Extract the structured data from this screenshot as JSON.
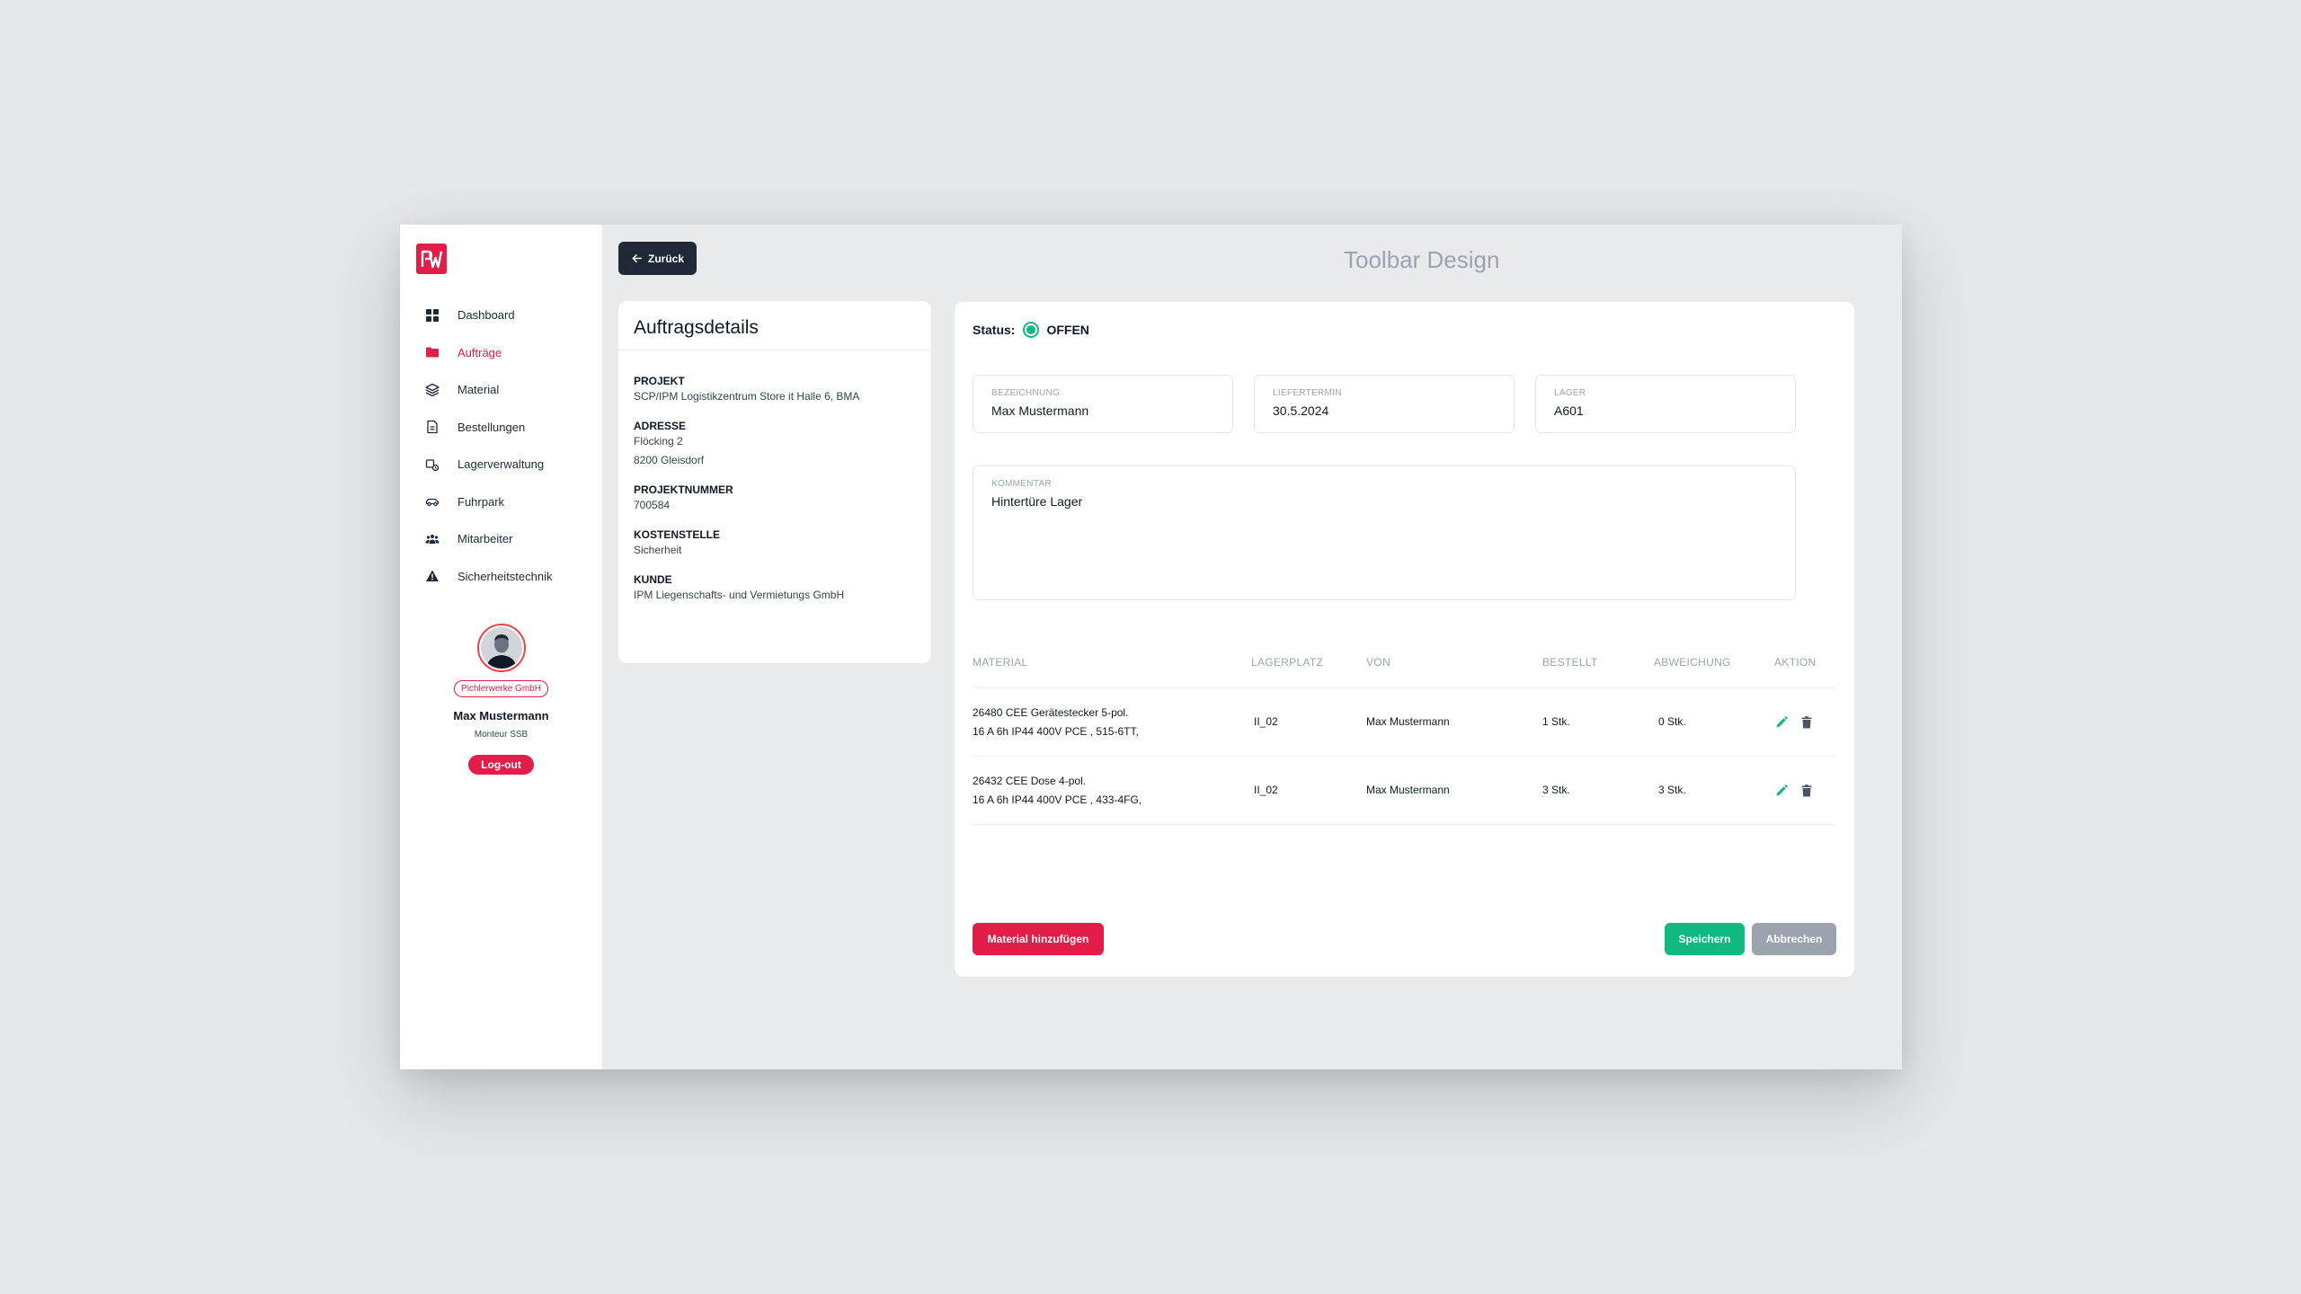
{
  "app": {
    "toolbar_title": "Toolbar Design",
    "back_label": "Zurück"
  },
  "colors": {
    "accent": "#e11d48",
    "success": "#10b981",
    "dark": "#1f2937",
    "muted": "#9ca3af"
  },
  "sidebar": {
    "items": [
      {
        "label": "Dashboard",
        "icon": "grid-icon",
        "active": false
      },
      {
        "label": "Aufträge",
        "icon": "folder-icon",
        "active": true
      },
      {
        "label": "Material",
        "icon": "layers-icon",
        "active": false
      },
      {
        "label": "Bestellungen",
        "icon": "document-icon",
        "active": false
      },
      {
        "label": "Lagerverwaltung",
        "icon": "truck-box-icon",
        "active": false
      },
      {
        "label": "Fuhrpark",
        "icon": "car-icon",
        "active": false
      },
      {
        "label": "Mitarbeiter",
        "icon": "users-icon",
        "active": false
      },
      {
        "label": "Sicherheitstechnik",
        "icon": "warning-icon",
        "active": false
      }
    ],
    "profile": {
      "company": "Pichlerwerke GmbH",
      "name": "Max Mustermann",
      "role": "Monteur SSB",
      "logout_label": "Log-out"
    }
  },
  "details": {
    "title": "Auftragsdetails",
    "projekt_label": "PROJEKT",
    "projekt_value": "SCP/IPM Logistikzentrum Store it Halle 6, BMA",
    "adresse_label": "ADRESSE",
    "adresse_line1": "Flöcking 2",
    "adresse_line2": "8200 Gleisdorf",
    "projektnummer_label": "PROJEKTNUMMER",
    "projektnummer_value": "700584",
    "kostenstelle_label": "KOSTENSTELLE",
    "kostenstelle_value": "Sicherheit",
    "kunde_label": "KUNDE",
    "kunde_value": "IPM Liegenschafts- und Vermietungs GmbH"
  },
  "order": {
    "status_label": "Status:",
    "status_value": "OFFEN",
    "bezeichnung_label": "Bezeichnung",
    "bezeichnung_value": "Max Mustermann",
    "liefertermin_label": "Liefertermin",
    "liefertermin_value": "30.5.2024",
    "lager_label": "Lager",
    "lager_value": "A601",
    "kommentar_label": "Kommentar",
    "kommentar_value": "Hintertüre Lager"
  },
  "table": {
    "headers": {
      "material": "Material",
      "lagerplatz": "Lagerplatz",
      "von": "von",
      "bestellt": "Bestellt",
      "abweichung": "Abweichung",
      "aktion": "Aktion"
    },
    "rows": [
      {
        "material_line1": "26480 CEE Gerätestecker 5-pol.",
        "material_line2": "16 A 6h IP44 400V PCE , 515-6TT,",
        "lagerplatz": "II_02",
        "von": "Max Mustermann",
        "bestellt": "1 Stk.",
        "abweichung": "0 Stk."
      },
      {
        "material_line1": "26432 CEE Dose 4-pol.",
        "material_line2": "16 A 6h IP44 400V PCE , 433-4FG,",
        "lagerplatz": "II_02",
        "von": "Max Mustermann",
        "bestellt": "3 Stk.",
        "abweichung": "3 Stk."
      }
    ]
  },
  "actions": {
    "add_label": "Material hinzufügen",
    "save_label": "Speichern",
    "cancel_label": "Abbrechen"
  }
}
